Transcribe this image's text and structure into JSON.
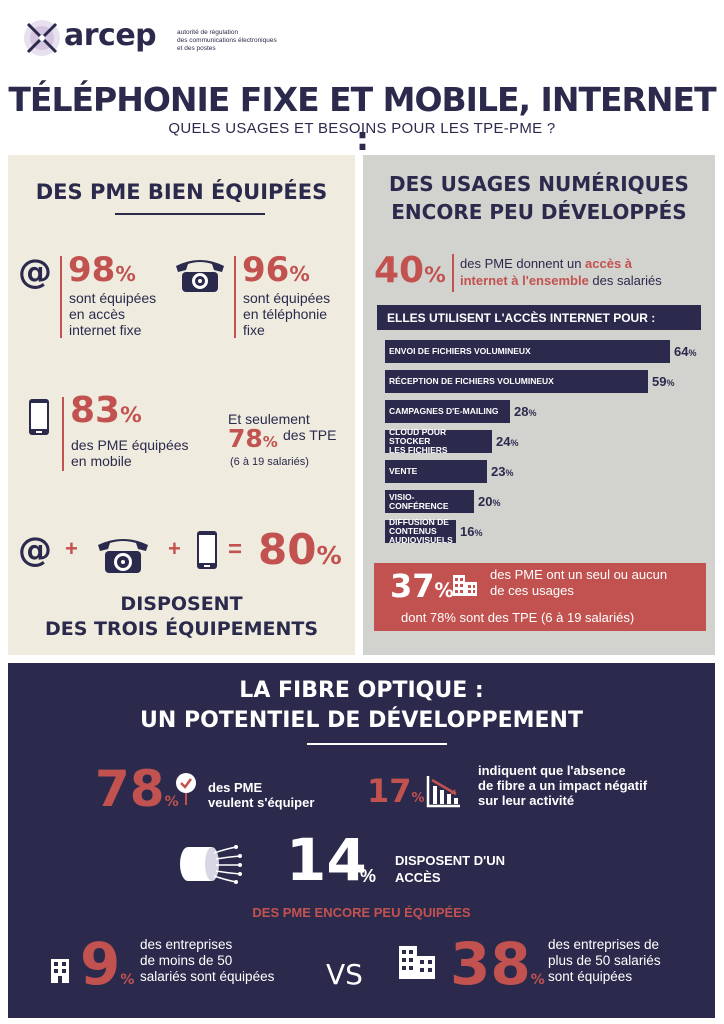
{
  "header": {
    "logo": "arcep",
    "logo_sub1": "autorité de régulation",
    "logo_sub2": "des communications électroniques",
    "logo_sub3": "et des postes",
    "title": "TÉLÉPHONIE FIXE ET MOBILE, INTERNET :",
    "subtitle": "QUELS USAGES ET BESOINS POUR LES TPE-PME ?"
  },
  "left": {
    "title": "DES PME BIEN ÉQUIPÉES",
    "s1_value": "98",
    "s1_text1": "sont équipées",
    "s1_text2": "en accès",
    "s1_text3": "internet fixe",
    "s2_value": "96",
    "s2_text1": "sont équipées",
    "s2_text2": "en téléphonie",
    "s2_text3": "fixe",
    "s3_value": "83",
    "s3_text1": "des PME équipées",
    "s3_text2": "en mobile",
    "s4_pre": "Et seulement",
    "s4_value": "78",
    "s4_post": "des TPE",
    "s4_note": "(6 à 19 salariés)",
    "combo_value": "80",
    "plus": "+",
    "equals": "=",
    "at": "@",
    "combo_text1": "DISPOSENT",
    "combo_text2": "DES TROIS ÉQUIPEMENTS",
    "pct": "%"
  },
  "right": {
    "title1": "DES USAGES NUMÉRIQUES",
    "title2": "ENCORE PEU DÉVELOPPÉS",
    "stat_value": "40",
    "stat_text_a": "des PME donnent un ",
    "stat_text_b": "accès à",
    "stat_text_c": "internet à l'ensemble",
    "stat_text_d": " des salariés",
    "banner": "ELLES UTILISENT L'ACCÈS INTERNET POUR :",
    "box_value": "37",
    "box_text1": "des PME ont un seul ou aucun",
    "box_text2": "de ces usages",
    "box_text3": "dont 78% sont des TPE (6 à 19 salariés)"
  },
  "chart_data": {
    "type": "bar",
    "title": "ELLES UTILISENT L'ACCÈS INTERNET POUR :",
    "categories": [
      "ENVOI DE FICHIERS VOLUMINEUX",
      "RÉCEPTION DE FICHIERS VOLUMINEUX",
      "CAMPAGNES D'E-MAILING",
      "CLOUD POUR STOCKER LES FICHIERS",
      "VENTE",
      "VISIO-CONFÉRENCE",
      "DIFFUSION DE CONTENUS AUDIOVISUELS"
    ],
    "labels_line1": [
      "ENVOI DE FICHIERS VOLUMINEUX",
      "RÉCEPTION DE FICHIERS VOLUMINEUX",
      "CAMPAGNES D'E-MAILING",
      "CLOUD POUR STOCKER",
      "VENTE",
      "VISIO-CONFÉRENCE",
      "DIFFUSION DE CONTENUS"
    ],
    "labels_line2": [
      "",
      "",
      "",
      "LES FICHIERS",
      "",
      "",
      "AUDIOVISUELS"
    ],
    "values": [
      64,
      59,
      28,
      24,
      23,
      20,
      16
    ],
    "unit": "%"
  },
  "fibre": {
    "title1": "LA FIBRE OPTIQUE :",
    "title2": "UN POTENTIEL DE DÉVELOPPEMENT",
    "a_value": "78",
    "a_text1": "des PME",
    "a_text2": "veulent s'équiper",
    "b_value": "17",
    "b_text1": "indiquent que l'absence",
    "b_text2": "de fibre a un impact négatif",
    "b_text3": "sur leur activité",
    "c_value": "14",
    "c_text1": "DISPOSENT D'UN",
    "c_text2": "ACCÈS",
    "subhead": "DES PME ENCORE PEU ÉQUIPÉES",
    "d_value": "9",
    "d_text1": "des entreprises",
    "d_text2": "de moins de 50",
    "d_text3": "salariés sont équipées",
    "vs": "VS",
    "e_value": "38",
    "e_text1": "des entreprises de",
    "e_text2": "plus de 50 salariés",
    "e_text3": "sont équipées"
  }
}
